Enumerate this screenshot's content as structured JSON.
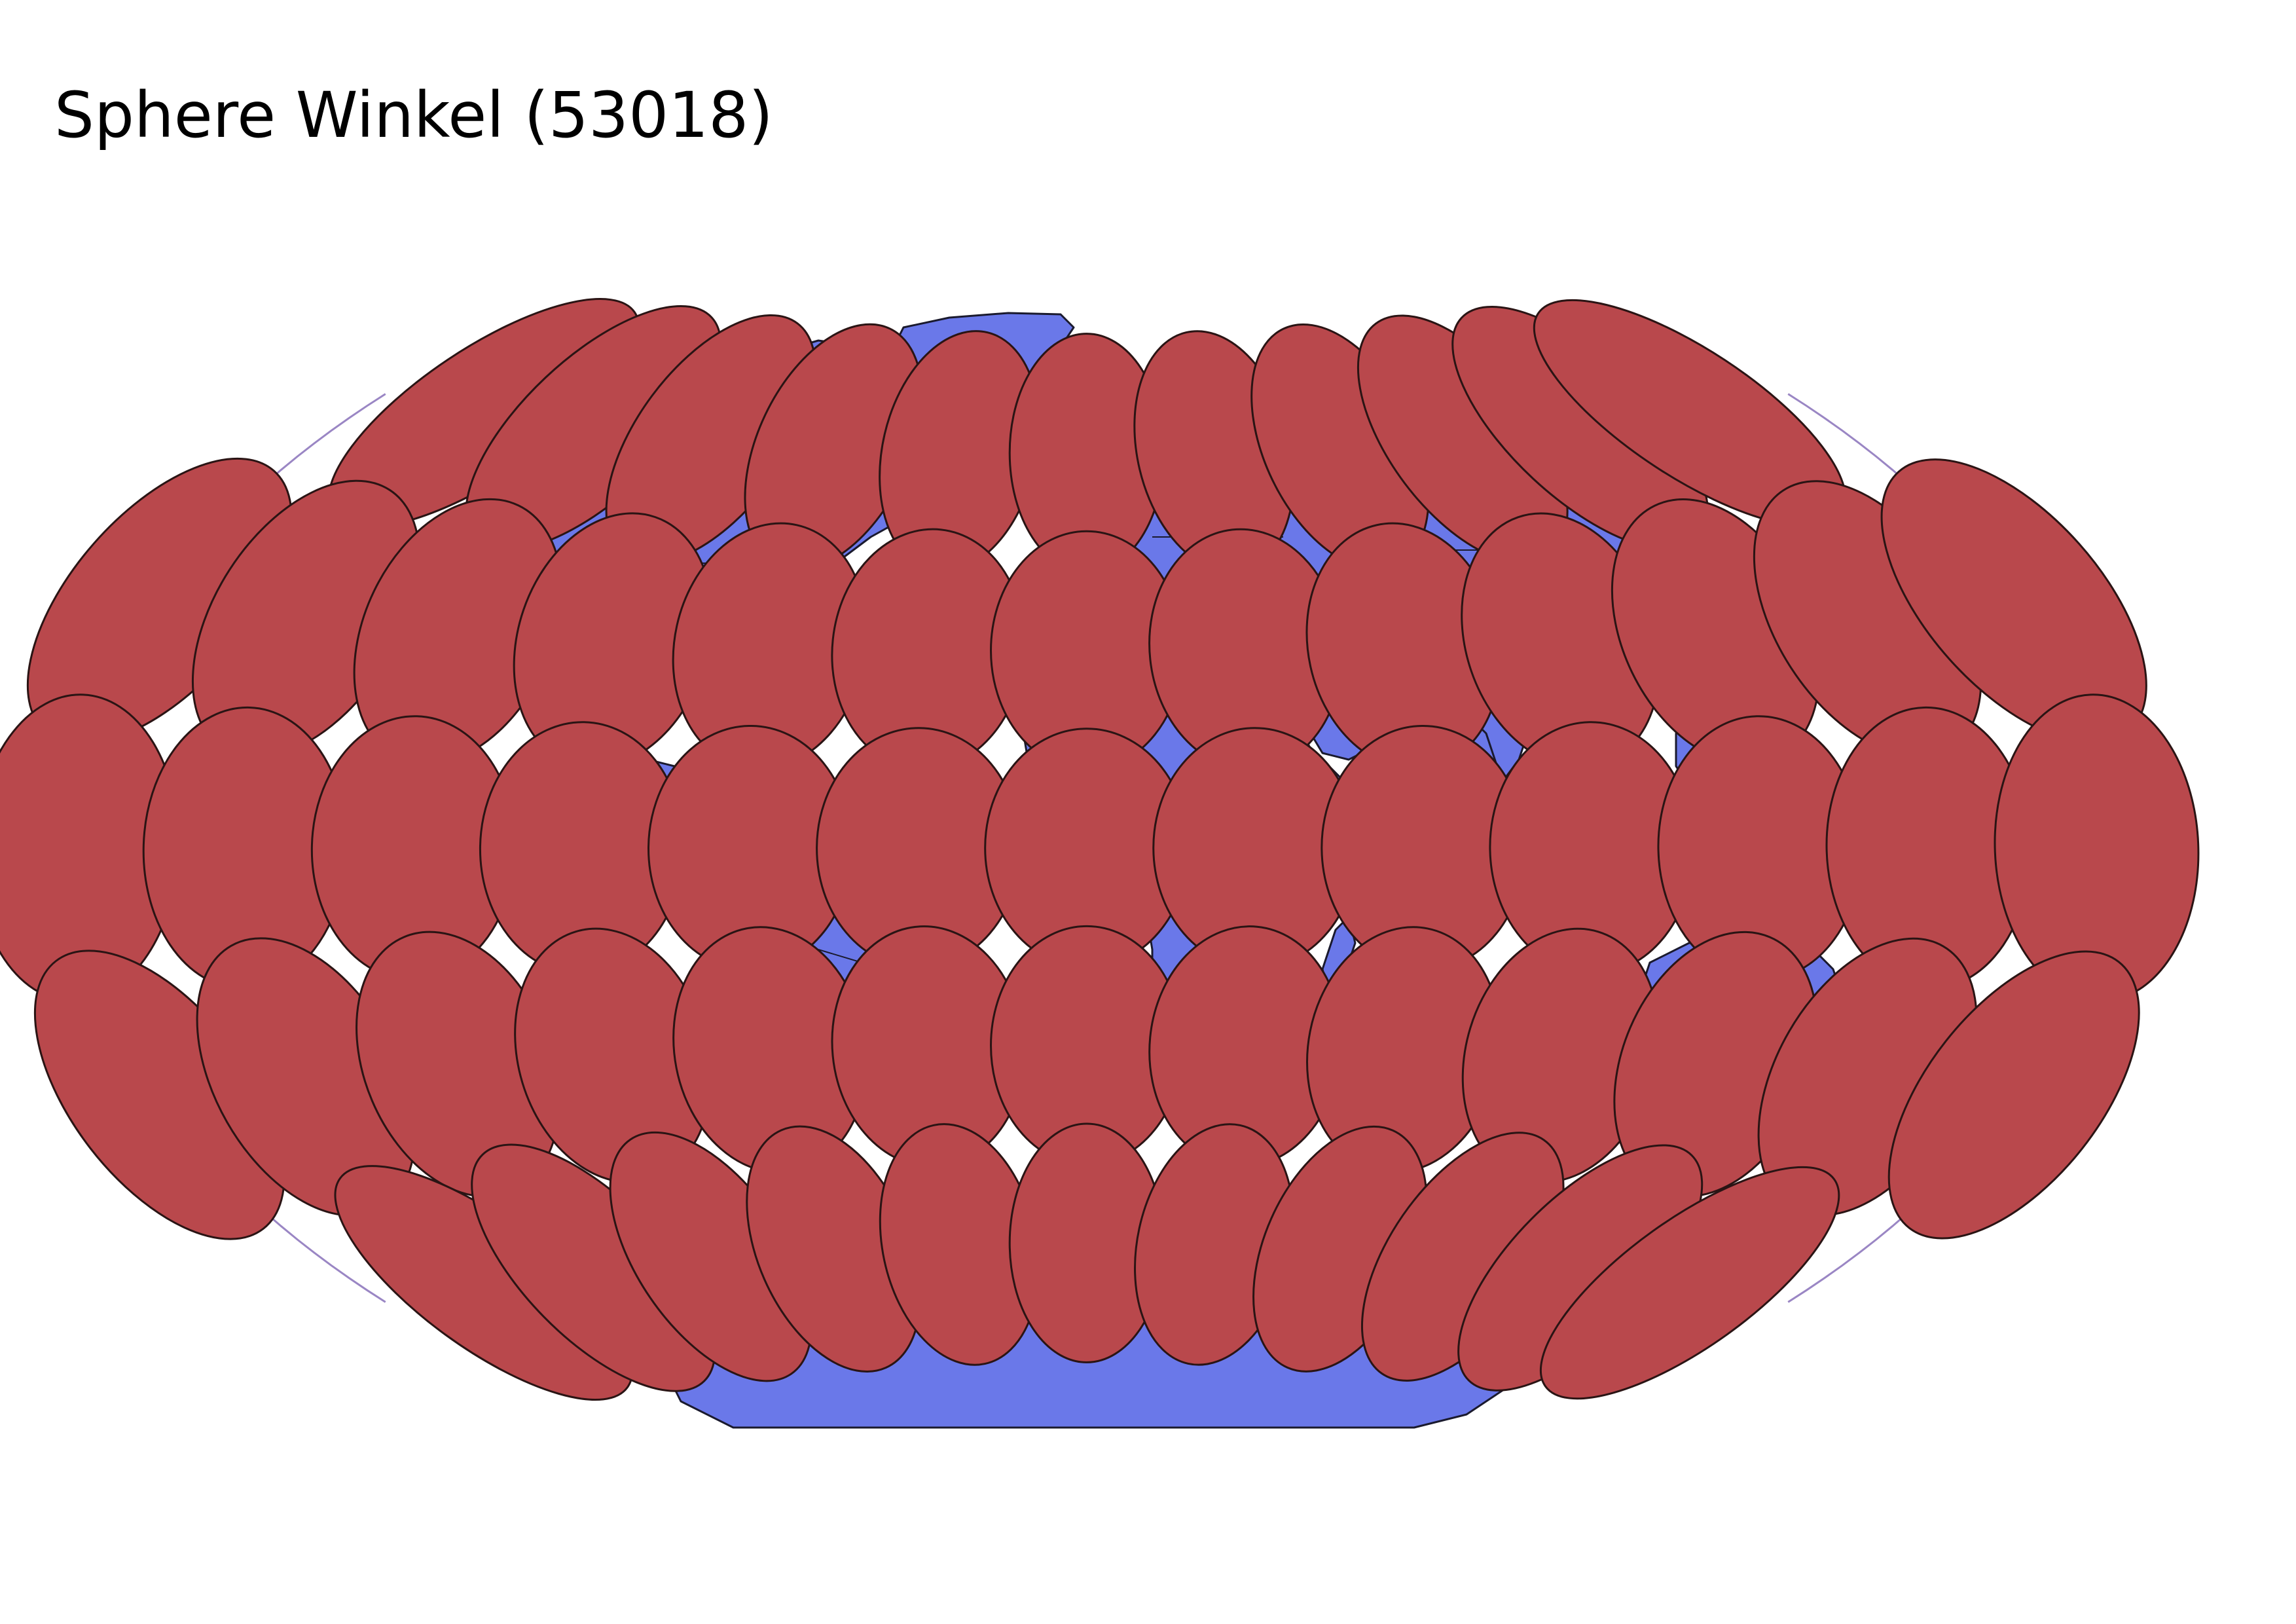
{
  "title": "Sphere Winkel (53018)",
  "colors": {
    "background": "#ffffff",
    "land": "#6a78e9",
    "coastline": "#1a1a2e",
    "graticule": "#9a86c4",
    "indicatrix_fill": "#b9484c",
    "indicatrix_stroke": "#2a1414"
  },
  "map": {
    "projection": "Winkel",
    "features": [
      "land",
      "country-borders",
      "graticule",
      "tissot-indicatrices"
    ],
    "graticule_longitudes": [
      -150,
      -120,
      -90,
      -60,
      -30,
      0,
      30,
      60,
      90,
      120,
      150
    ],
    "graticule_latitudes": [
      -60,
      -30,
      0,
      30,
      60
    ],
    "indicatrix_longitudes": [
      -150,
      -120,
      -90,
      -60,
      -30,
      0,
      30,
      60,
      90,
      120,
      150,
      180,
      -180
    ],
    "indicatrix_latitudes": [
      60,
      30,
      0,
      -30,
      -60
    ]
  }
}
